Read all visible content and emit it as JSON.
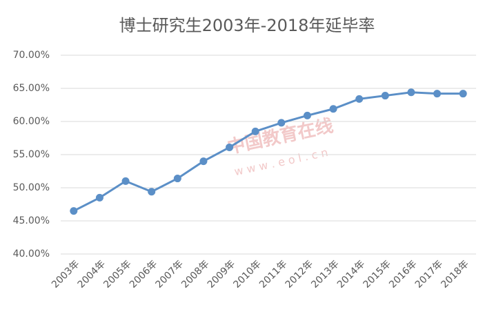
{
  "chart_data": {
    "type": "line",
    "title": "博士研究生2003年-2018年延毕率",
    "categories": [
      "2003年",
      "2004年",
      "2005年",
      "2006年",
      "2007年",
      "2008年",
      "2009年",
      "2010年",
      "2011年",
      "2012年",
      "2013年",
      "2014年",
      "2015年",
      "2016年",
      "2017年",
      "2018年"
    ],
    "series": [
      {
        "name": "延毕率",
        "color": "#5b8fc7",
        "values": [
          46.5,
          48.5,
          51.0,
          49.4,
          51.4,
          54.0,
          56.1,
          58.5,
          59.8,
          60.9,
          61.9,
          63.4,
          63.9,
          64.4,
          64.2,
          64.2
        ]
      }
    ],
    "ylim": [
      40,
      70
    ],
    "yticks": [
      {
        "value": 40,
        "label": "40.00%"
      },
      {
        "value": 45,
        "label": "45.00%"
      },
      {
        "value": 50,
        "label": "50.00%"
      },
      {
        "value": 55,
        "label": "55.00%"
      },
      {
        "value": 60,
        "label": "60.00%"
      },
      {
        "value": 65,
        "label": "65.00%"
      },
      {
        "value": 70,
        "label": "70.00%"
      }
    ],
    "grid": true
  },
  "watermark": {
    "brand": "中国教育在线",
    "site": "w w w . e o l . c n"
  }
}
